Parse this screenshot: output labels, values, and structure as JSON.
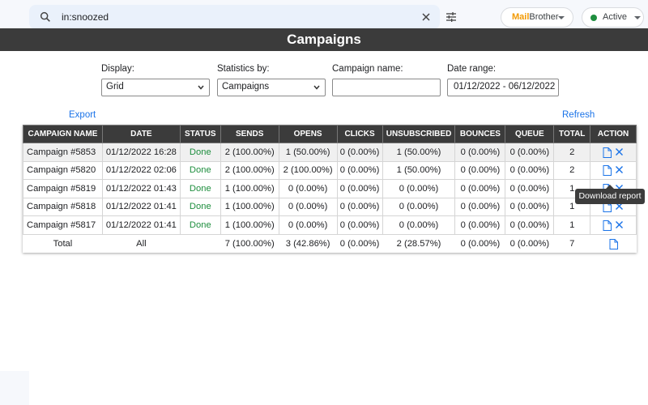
{
  "search": {
    "query": "in:snoozed",
    "icon": "search-icon"
  },
  "brand": {
    "part1": "Mail",
    "part2": "Brother"
  },
  "status_chip": {
    "label": "Active",
    "color": "#1e8e3e"
  },
  "modal": {
    "title": "Campaigns",
    "filters": {
      "display_label": "Display:",
      "display_value": "Grid",
      "stats_label": "Statistics by:",
      "stats_value": "Campaigns",
      "name_label": "Campaign name:",
      "name_value": "",
      "date_label": "Date range:",
      "date_value": "01/12/2022 - 06/12/2022"
    },
    "export_label": "Export",
    "refresh_label": "Refresh",
    "table": {
      "headers": [
        "CAMPAIGN NAME",
        "DATE",
        "STATUS",
        "SENDS",
        "OPENS",
        "CLICKS",
        "UNSUBSCRIBED",
        "BOUNCES",
        "QUEUE",
        "TOTAL",
        "ACTION"
      ],
      "rows": [
        [
          "Campaign #5853",
          "01/12/2022 16:28",
          "Done",
          "2 (100.00%)",
          "1 (50.00%)",
          "0 (0.00%)",
          "1 (50.00%)",
          "0 (0.00%)",
          "0 (0.00%)",
          "2"
        ],
        [
          "Campaign #5820",
          "01/12/2022 02:06",
          "Done",
          "2 (100.00%)",
          "2 (100.00%)",
          "0 (0.00%)",
          "1 (50.00%)",
          "0 (0.00%)",
          "0 (0.00%)",
          "2"
        ],
        [
          "Campaign #5819",
          "01/12/2022 01:43",
          "Done",
          "1 (100.00%)",
          "0 (0.00%)",
          "0 (0.00%)",
          "0 (0.00%)",
          "0 (0.00%)",
          "0 (0.00%)",
          "1"
        ],
        [
          "Campaign #5818",
          "01/12/2022 01:41",
          "Done",
          "1 (100.00%)",
          "0 (0.00%)",
          "0 (0.00%)",
          "0 (0.00%)",
          "0 (0.00%)",
          "0 (0.00%)",
          "1"
        ],
        [
          "Campaign #5817",
          "01/12/2022 01:41",
          "Done",
          "1 (100.00%)",
          "0 (0.00%)",
          "0 (0.00%)",
          "0 (0.00%)",
          "0 (0.00%)",
          "0 (0.00%)",
          "1"
        ]
      ],
      "total": [
        "Total",
        "All",
        "",
        "7 (100.00%)",
        "3 (42.86%)",
        "0 (0.00%)",
        "2 (28.57%)",
        "0 (0.00%)",
        "0 (0.00%)",
        "7"
      ]
    },
    "tooltip": "Download report"
  },
  "colors": {
    "header_bg": "#3b3b3b",
    "link": "#1a73e8",
    "done": "#1e8e3e",
    "brand_accent": "#f29900"
  }
}
